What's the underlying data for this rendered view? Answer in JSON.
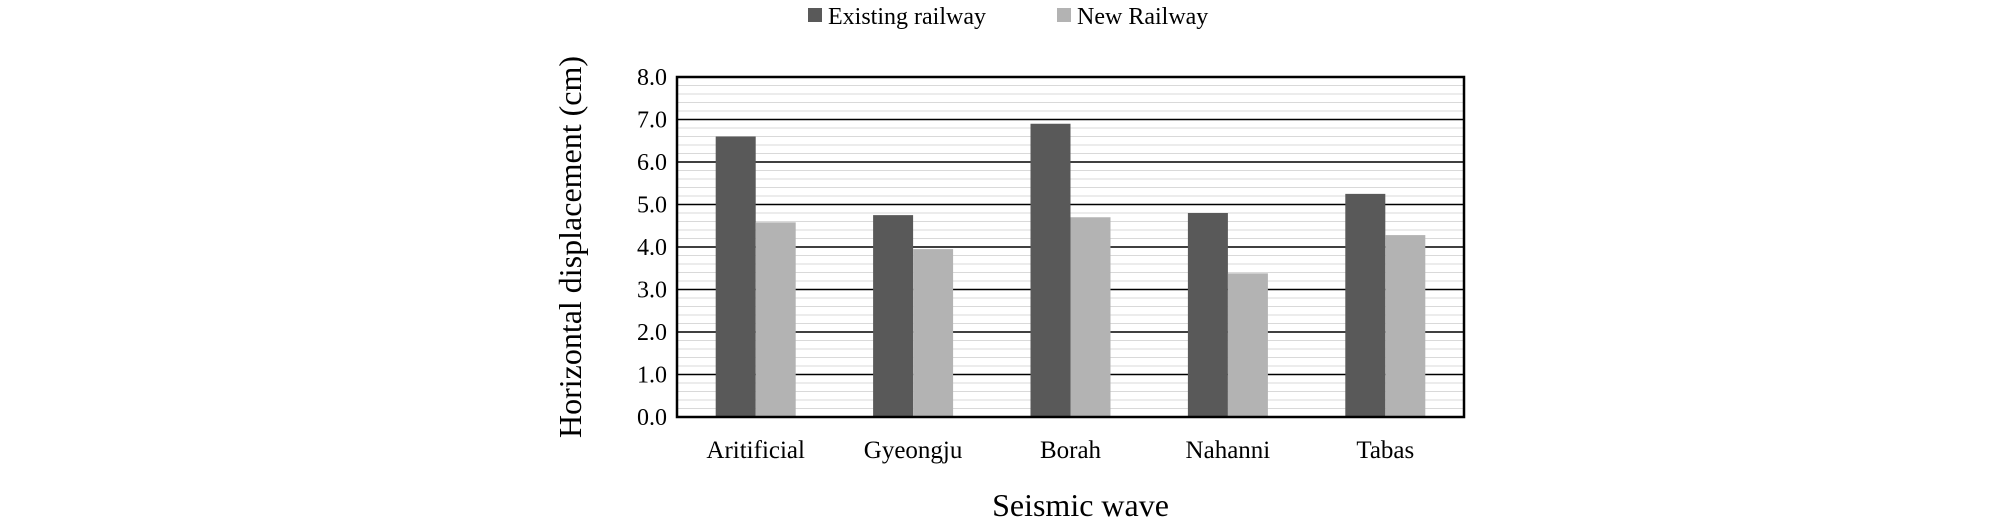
{
  "chart_data": {
    "type": "bar",
    "title": "",
    "xlabel": "Seismic wave",
    "ylabel": "Horizontal displacement (cm)",
    "categories": [
      "Aritificial",
      "Gyeongju",
      "Borah",
      "Nahanni",
      "Tabas"
    ],
    "series": [
      {
        "name": "Existing railway",
        "values": [
          6.6,
          4.75,
          6.9,
          4.8,
          5.25
        ],
        "color": "#595959"
      },
      {
        "name": "New Railway",
        "values": [
          4.58,
          3.95,
          4.7,
          3.38,
          4.28
        ],
        "color": "#b3b3b3"
      }
    ],
    "ylim": [
      0,
      8
    ],
    "yticks": [
      "0.0",
      "1.0",
      "2.0",
      "3.0",
      "4.0",
      "5.0",
      "6.0",
      "7.0",
      "8.0"
    ],
    "ytick_values": [
      0,
      1,
      2,
      3,
      4,
      5,
      6,
      7,
      8
    ],
    "minor_grid_step": 0.2,
    "grid": true,
    "legend_position": "top"
  }
}
